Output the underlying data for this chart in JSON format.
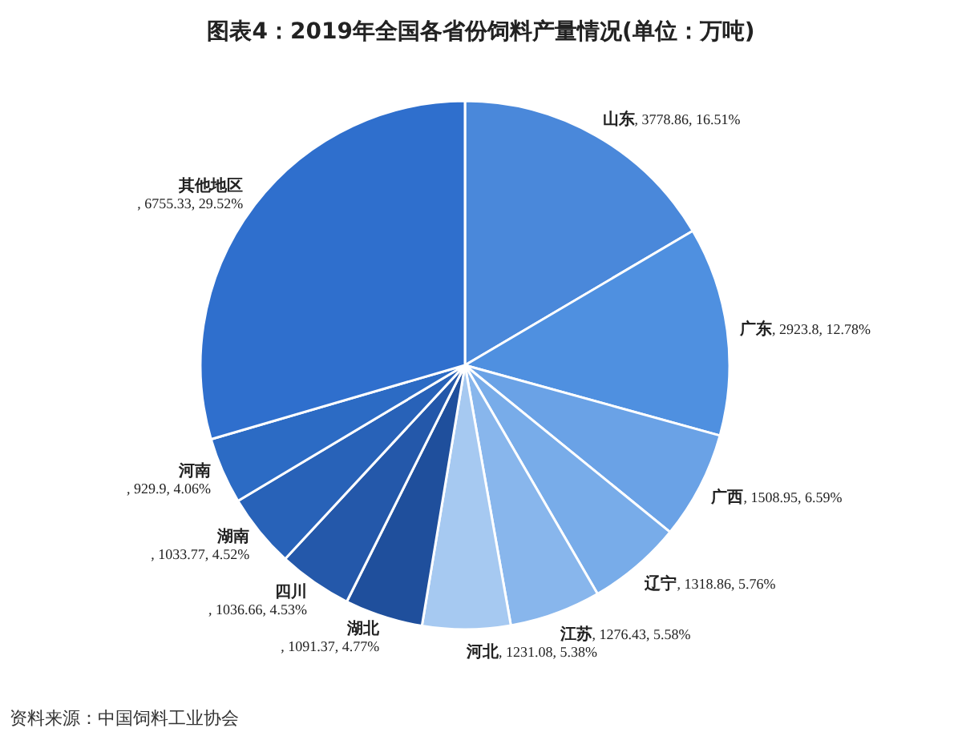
{
  "chart_data": {
    "type": "pie",
    "title": "图表4：2019年全国各省份饲料产量情况(单位：万吨)",
    "categories": [
      "山东",
      "广东",
      "广西",
      "辽宁",
      "江苏",
      "河北",
      "湖北",
      "四川",
      "湖南",
      "河南",
      "其他地区"
    ],
    "values": [
      3778.86,
      2923.8,
      1508.95,
      1318.86,
      1276.43,
      1231.08,
      1091.37,
      1036.66,
      1033.77,
      929.9,
      6755.33
    ],
    "value_labels": [
      ", 3778.86, 16.51%",
      ", 2923.8, 12.78%",
      ", 1508.95, 6.59%",
      ", 1318.86, 5.76%",
      ", 1276.43, 5.58%",
      ", 1231.08, 5.38%",
      ", 1091.37, 4.77%",
      ", 1036.66, 4.53%",
      ", 1033.77, 4.52%",
      ", 929.9, 4.06%",
      ", 6755.33, 29.52%"
    ],
    "colors": [
      "#4a88da",
      "#4f90e0",
      "#6aa2e6",
      "#78ace9",
      "#88b6ec",
      "#a6c9f1",
      "#1f4f9c",
      "#2458aa",
      "#2862b8",
      "#2c6bc4",
      "#2f6fcd"
    ],
    "annotations": [
      "资料来源：中国饲料工业协会"
    ]
  }
}
